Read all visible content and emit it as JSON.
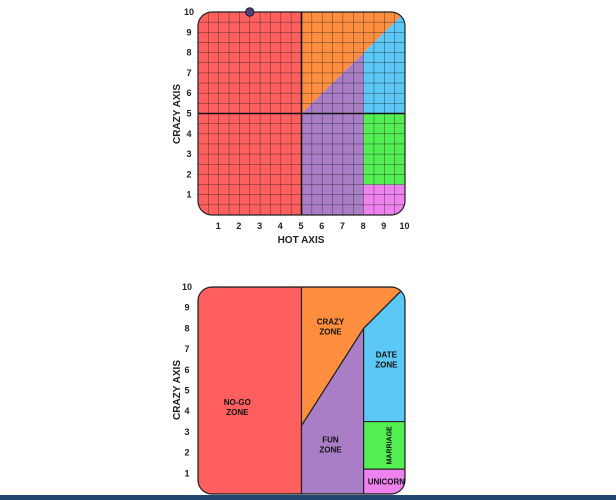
{
  "chart_data": [
    {
      "type": "scatter",
      "xlabel": "HOT AXIS",
      "ylabel": "CRAZY AXIS",
      "xlim": [
        0,
        10
      ],
      "ylim": [
        0,
        10
      ],
      "x_ticks": [
        "1",
        "2",
        "3",
        "4",
        "5",
        "6",
        "7",
        "8",
        "9",
        "10"
      ],
      "y_ticks": [
        "1",
        "2",
        "3",
        "4",
        "5",
        "6",
        "7",
        "8",
        "9",
        "10"
      ],
      "grid": true,
      "grid_step": 0.5,
      "reference_lines": {
        "x": 5,
        "y": 5
      },
      "regions": [
        {
          "id": "no-go",
          "color": "#ff5f5f",
          "polygon": [
            [
              0,
              0
            ],
            [
              5,
              0
            ],
            [
              5,
              10
            ],
            [
              0,
              10
            ]
          ]
        },
        {
          "id": "crazy",
          "color": "#ff8f3f",
          "polygon": [
            [
              5,
              5
            ],
            [
              5,
              10
            ],
            [
              10,
              10
            ]
          ]
        },
        {
          "id": "fun",
          "color": "#a97ec6",
          "polygon": [
            [
              5,
              0
            ],
            [
              5,
              5
            ],
            [
              8,
              8
            ],
            [
              8,
              0
            ]
          ]
        },
        {
          "id": "date",
          "color": "#5bc8f5",
          "polygon": [
            [
              8,
              8
            ],
            [
              10,
              10
            ],
            [
              10,
              5
            ],
            [
              8,
              5
            ]
          ]
        },
        {
          "id": "marriage",
          "color": "#52ee52",
          "polygon": [
            [
              8,
              1.5
            ],
            [
              8,
              5
            ],
            [
              10,
              5
            ],
            [
              10,
              1.5
            ]
          ]
        },
        {
          "id": "unicorn",
          "color": "#ee82ee",
          "polygon": [
            [
              8,
              0
            ],
            [
              8,
              1.5
            ],
            [
              10,
              1.5
            ],
            [
              10,
              0
            ]
          ]
        }
      ],
      "points": [
        {
          "x": 2.5,
          "y": 10,
          "color": "#553c7a"
        }
      ]
    },
    {
      "type": "area",
      "ylabel": "CRAZY AXIS",
      "xlim": [
        0,
        10
      ],
      "ylim": [
        0,
        10
      ],
      "y_ticks": [
        "1",
        "2",
        "3",
        "4",
        "5",
        "6",
        "7",
        "8",
        "9",
        "10"
      ],
      "grid": false,
      "zones": [
        {
          "id": "no-go",
          "label": "NO-GO\nZONE",
          "color": "#ff5f5f",
          "polygon": [
            [
              0,
              0
            ],
            [
              5,
              0
            ],
            [
              5,
              10
            ],
            [
              0,
              10
            ]
          ],
          "label_at": [
            1.9,
            4.2
          ]
        },
        {
          "id": "crazy",
          "label": "CRAZY\nZONE",
          "color": "#ff8f3f",
          "polygon": [
            [
              5,
              3.3
            ],
            [
              5,
              10
            ],
            [
              10,
              10
            ],
            [
              8,
              8
            ]
          ],
          "label_at": [
            6.4,
            8.1
          ]
        },
        {
          "id": "fun",
          "label": "FUN\nZONE",
          "color": "#a97ec6",
          "polygon": [
            [
              5,
              0
            ],
            [
              5,
              3.3
            ],
            [
              8,
              8
            ],
            [
              8,
              0
            ]
          ],
          "label_at": [
            6.4,
            2.4
          ]
        },
        {
          "id": "date",
          "label": "DATE\nZONE",
          "color": "#5bc8f5",
          "polygon": [
            [
              8,
              8
            ],
            [
              10,
              10
            ],
            [
              10,
              3.5
            ],
            [
              8,
              3.5
            ]
          ],
          "label_at": [
            9.1,
            6.5
          ]
        },
        {
          "id": "marriage",
          "label": "MARRIAGE",
          "color": "#52ee52",
          "polygon": [
            [
              8,
              1.2
            ],
            [
              8,
              3.5
            ],
            [
              10,
              3.5
            ],
            [
              10,
              1.2
            ]
          ],
          "label_at": [
            9.2,
            2.35
          ],
          "vertical": true
        },
        {
          "id": "unicorn",
          "label": "UNICORN",
          "color": "#ee82ee",
          "polygon": [
            [
              8,
              0
            ],
            [
              8,
              1.2
            ],
            [
              10,
              1.2
            ],
            [
              10,
              0
            ]
          ],
          "label_at": [
            9.1,
            0.6
          ]
        }
      ]
    }
  ]
}
